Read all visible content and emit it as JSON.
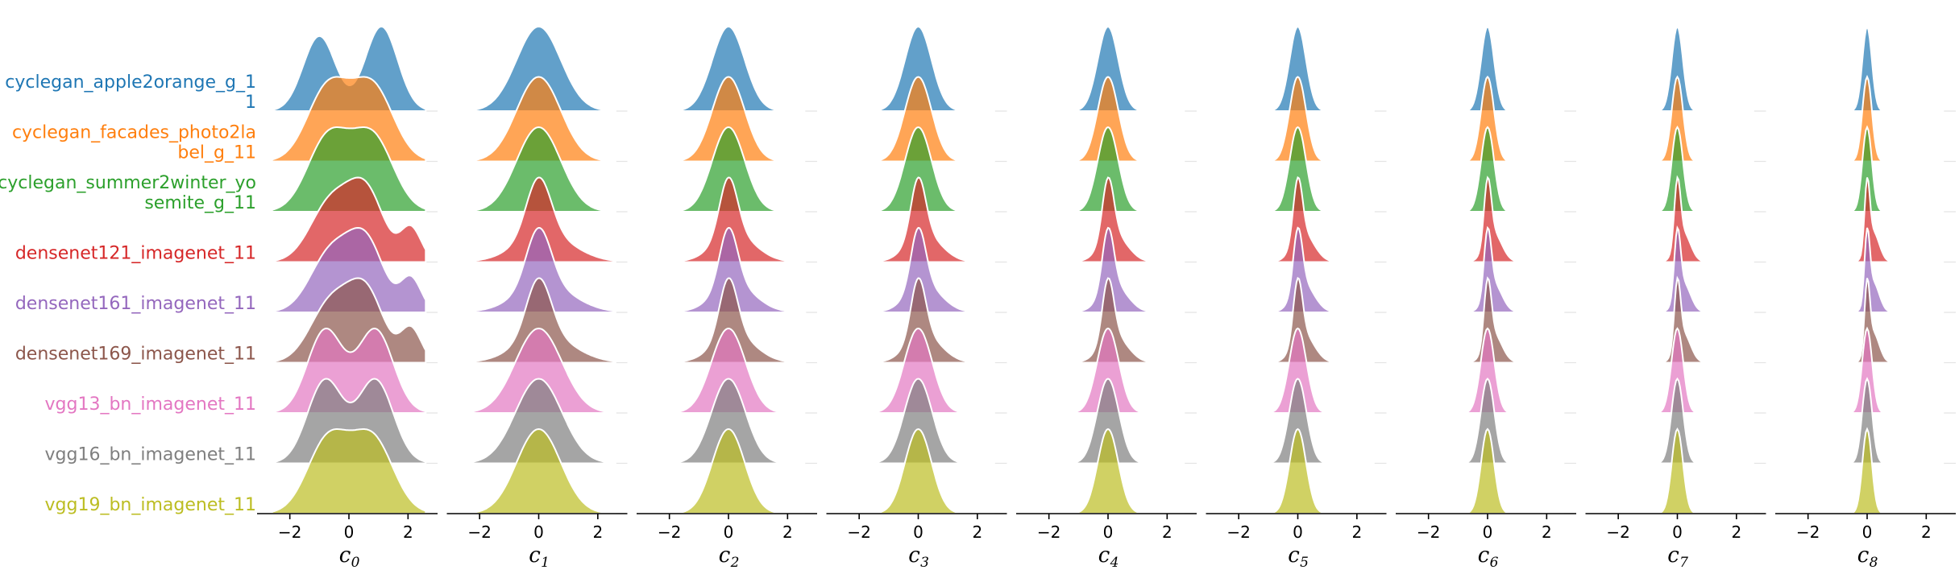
{
  "chart_data": {
    "type": "area",
    "kind": "ridgeline (joyplot) of density curves",
    "series": [
      {
        "name": "cyclegan_apple2orange_g_11",
        "label_lines": [
          "cyclegan_apple2orange_g_1",
          "1"
        ],
        "color": "#1f77b4"
      },
      {
        "name": "cyclegan_facades_photo2label_g_11",
        "label_lines": [
          "cyclegan_facades_photo2la",
          "bel_g_11"
        ],
        "color": "#ff7f0e"
      },
      {
        "name": "cyclegan_summer2winter_yosemite_g_11",
        "label_lines": [
          "cyclegan_summer2winter_yo",
          "semite_g_11"
        ],
        "color": "#2ca02c"
      },
      {
        "name": "densenet121_imagenet_11",
        "label_lines": [
          "densenet121_imagenet_11"
        ],
        "color": "#d62728"
      },
      {
        "name": "densenet161_imagenet_11",
        "label_lines": [
          "densenet161_imagenet_11"
        ],
        "color": "#9467bd"
      },
      {
        "name": "densenet169_imagenet_11",
        "label_lines": [
          "densenet169_imagenet_11"
        ],
        "color": "#8c564b"
      },
      {
        "name": "vgg13_bn_imagenet_11",
        "label_lines": [
          "vgg13_bn_imagenet_11"
        ],
        "color": "#e377c2"
      },
      {
        "name": "vgg16_bn_imagenet_11",
        "label_lines": [
          "vgg16_bn_imagenet_11"
        ],
        "color": "#7f7f7f"
      },
      {
        "name": "vgg19_bn_imagenet_11",
        "label_lines": [
          "vgg19_bn_imagenet_11"
        ],
        "color": "#bcbd22"
      }
    ],
    "panels": [
      {
        "xlabel": "c",
        "xlabel_sub": "0",
        "sigma": 0.95
      },
      {
        "xlabel": "c",
        "xlabel_sub": "1",
        "sigma": 0.75
      },
      {
        "xlabel": "c",
        "xlabel_sub": "2",
        "sigma": 0.55
      },
      {
        "xlabel": "c",
        "xlabel_sub": "3",
        "sigma": 0.45
      },
      {
        "xlabel": "c",
        "xlabel_sub": "4",
        "sigma": 0.35
      },
      {
        "xlabel": "c",
        "xlabel_sub": "5",
        "sigma": 0.28
      },
      {
        "xlabel": "c",
        "xlabel_sub": "6",
        "sigma": 0.22
      },
      {
        "xlabel": "c",
        "xlabel_sub": "7",
        "sigma": 0.19
      },
      {
        "xlabel": "c",
        "xlabel_sub": "8",
        "sigma": 0.16
      }
    ],
    "xlim": [
      -3,
      3
    ],
    "xticks": [
      -2,
      0,
      2
    ],
    "xtick_labels": [
      "−2",
      "0",
      "2"
    ],
    "grid": false,
    "legend": "none (row labels at left)"
  }
}
